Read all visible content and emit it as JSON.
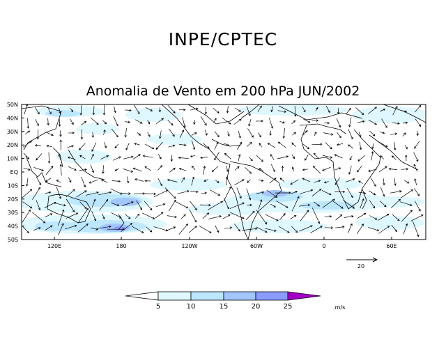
{
  "header": {
    "organization": "INPE/CPTEC"
  },
  "map": {
    "title": "Anomalia de Vento em 200 hPa JUN/2002",
    "lat_labels": [
      "50N",
      "40N",
      "30N",
      "20N",
      "10N",
      "EQ",
      "10S",
      "20S",
      "30S",
      "40S",
      "50S"
    ],
    "lon_labels": [
      "120E",
      "180",
      "120W",
      "60W",
      "0",
      "60E"
    ],
    "reference_vector": {
      "value": "20"
    }
  },
  "colorbar": {
    "ticks": [
      "5",
      "10",
      "15",
      "20",
      "25"
    ],
    "units": "m/s",
    "colors": [
      "#ffffff",
      "#dff7ff",
      "#bde6ff",
      "#a3c6ff",
      "#8a9cff",
      "#6a66ee",
      "#a400c8"
    ]
  }
}
